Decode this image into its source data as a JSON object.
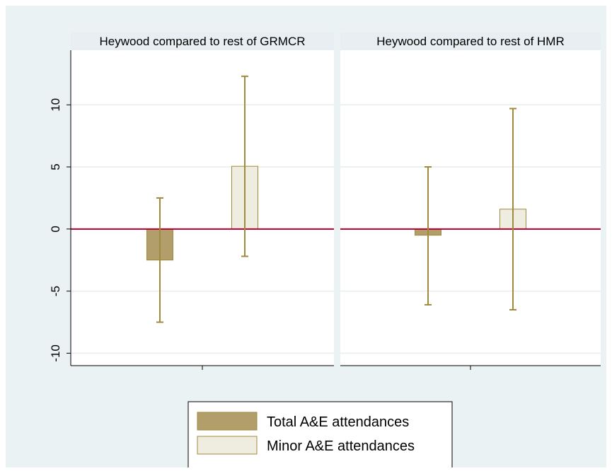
{
  "chart_data": {
    "type": "bar",
    "panels": [
      {
        "title": "Heywood compared to rest of GRMCR",
        "series": [
          {
            "name": "Total A&E attendances",
            "value": -2.5,
            "ci": [
              -7.5,
              2.5
            ]
          },
          {
            "name": "Minor A&E attendances",
            "value": 5.05,
            "ci": [
              -2.2,
              12.3
            ]
          }
        ]
      },
      {
        "title": "Heywood compared to rest of HMR",
        "series": [
          {
            "name": "Total A&E attendances",
            "value": -0.5,
            "ci": [
              -6.1,
              5.0
            ]
          },
          {
            "name": "Minor A&E attendances",
            "value": 1.6,
            "ci": [
              -6.5,
              9.7
            ]
          }
        ]
      }
    ],
    "ylim": [
      -11,
      13.6
    ],
    "yticks": [
      -10,
      -5,
      0,
      5,
      10
    ],
    "ytick_labels": [
      "-10",
      "-5",
      "0",
      "5",
      "10"
    ],
    "reference_line": 0,
    "grid": true,
    "legend": {
      "position": "bottom-center",
      "entries": [
        "Total A&E attendances",
        "Minor A&E attendances"
      ]
    },
    "colors": {
      "total": "#b19e6a",
      "minor": "#efece0",
      "errorbar": "#a08a3d",
      "reference_line": "#b0002b",
      "background": "#eaf2f3",
      "plot_background": "#ffffff",
      "gridline": "#e6eef0",
      "panel_title_background": "#e8eef2"
    }
  }
}
